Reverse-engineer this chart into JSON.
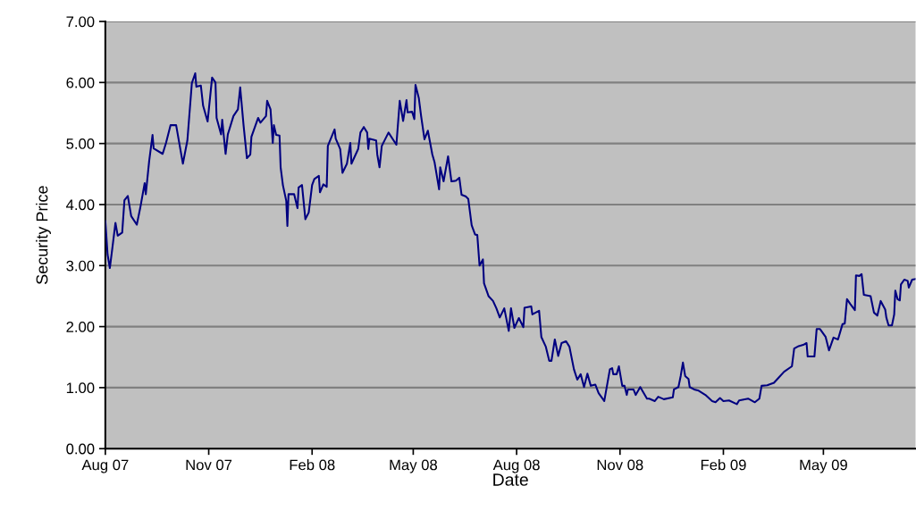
{
  "chart_data": {
    "type": "line",
    "xlabel": "Date",
    "ylabel": "Security Price",
    "x": [
      "2007-08-01",
      "2007-08-03",
      "2007-08-05",
      "2007-08-07",
      "2007-08-10",
      "2007-08-12",
      "2007-08-16",
      "2007-08-18",
      "2007-08-21",
      "2007-08-24",
      "2007-08-29",
      "2007-09-01",
      "2007-09-05",
      "2007-09-06",
      "2007-09-09",
      "2007-09-12",
      "2007-09-13",
      "2007-09-21",
      "2007-09-24",
      "2007-09-28",
      "2007-10-03",
      "2007-10-09",
      "2007-10-13",
      "2007-10-17",
      "2007-10-20",
      "2007-10-21",
      "2007-10-25",
      "2007-10-27",
      "2007-10-31",
      "2007-11-04",
      "2007-11-07",
      "2007-11-08",
      "2007-11-12",
      "2007-11-13",
      "2007-11-16",
      "2007-11-18",
      "2007-11-23",
      "2007-11-27",
      "2007-11-29",
      "2007-12-02",
      "2007-12-05",
      "2007-12-08",
      "2007-12-09",
      "2007-12-15",
      "2007-12-17",
      "2007-12-22",
      "2007-12-23",
      "2007-12-26",
      "2007-12-28",
      "2007-12-29",
      "2007-12-31",
      "2008-01-03",
      "2008-01-04",
      "2008-01-06",
      "2008-01-09",
      "2008-01-10",
      "2008-01-11",
      "2008-01-16",
      "2008-01-19",
      "2008-01-20",
      "2008-01-23",
      "2008-01-26",
      "2008-01-29",
      "2008-02-01",
      "2008-02-03",
      "2008-02-07",
      "2008-02-08",
      "2008-02-11",
      "2008-02-14",
      "2008-02-15",
      "2008-02-21",
      "2008-02-22",
      "2008-02-26",
      "2008-02-28",
      "2008-03-03",
      "2008-03-06",
      "2008-03-07",
      "2008-03-13",
      "2008-03-15",
      "2008-03-18",
      "2008-03-21",
      "2008-03-22",
      "2008-03-23",
      "2008-03-29",
      "2008-03-30",
      "2008-04-01",
      "2008-04-03",
      "2008-04-09",
      "2008-04-16",
      "2008-04-19",
      "2008-04-22",
      "2008-04-25",
      "2008-04-26",
      "2008-04-30",
      "2008-05-02",
      "2008-05-03",
      "2008-05-06",
      "2008-05-08",
      "2008-05-11",
      "2008-05-14",
      "2008-05-18",
      "2008-05-20",
      "2008-05-24",
      "2008-05-25",
      "2008-05-28",
      "2008-06-01",
      "2008-06-04",
      "2008-06-08",
      "2008-06-11",
      "2008-06-13",
      "2008-06-17",
      "2008-06-19",
      "2008-06-22",
      "2008-06-25",
      "2008-06-27",
      "2008-06-29",
      "2008-07-02",
      "2008-07-03",
      "2008-07-07",
      "2008-07-11",
      "2008-07-14",
      "2008-07-17",
      "2008-07-21",
      "2008-07-25",
      "2008-07-27",
      "2008-07-30",
      "2008-08-03",
      "2008-08-07",
      "2008-08-08",
      "2008-08-14",
      "2008-08-15",
      "2008-08-21",
      "2008-08-23",
      "2008-08-27",
      "2008-08-30",
      "2008-09-01",
      "2008-09-04",
      "2008-09-07",
      "2008-09-10",
      "2008-09-14",
      "2008-09-17",
      "2008-09-21",
      "2008-09-24",
      "2008-09-27",
      "2008-09-30",
      "2008-10-03",
      "2008-10-06",
      "2008-10-10",
      "2008-10-13",
      "2008-10-18",
      "2008-10-23",
      "2008-10-25",
      "2008-10-26",
      "2008-10-29",
      "2008-10-31",
      "2008-11-03",
      "2008-11-05",
      "2008-11-07",
      "2008-11-08",
      "2008-11-13",
      "2008-11-15",
      "2008-11-19",
      "2008-11-25",
      "2008-11-27",
      "2008-12-02",
      "2008-12-05",
      "2008-12-10",
      "2008-12-18",
      "2008-12-19",
      "2008-12-23",
      "2008-12-25",
      "2008-12-27",
      "2008-12-29",
      "2009-01-01",
      "2009-01-02",
      "2009-01-06",
      "2009-01-10",
      "2009-01-16",
      "2009-01-22",
      "2009-01-25",
      "2009-01-29",
      "2009-02-01",
      "2009-02-06",
      "2009-02-13",
      "2009-02-15",
      "2009-02-23",
      "2009-03-01",
      "2009-03-05",
      "2009-03-07",
      "2009-03-12",
      "2009-03-18",
      "2009-03-22",
      "2009-03-27",
      "2009-04-03",
      "2009-04-05",
      "2009-04-09",
      "2009-04-13",
      "2009-04-16",
      "2009-04-17",
      "2009-04-23",
      "2009-04-25",
      "2009-04-28",
      "2009-05-03",
      "2009-05-06",
      "2009-05-10",
      "2009-05-14",
      "2009-05-18",
      "2009-05-20",
      "2009-05-22",
      "2009-05-25",
      "2009-05-29",
      "2009-05-30",
      "2009-06-02",
      "2009-06-04",
      "2009-06-06",
      "2009-06-12",
      "2009-06-15",
      "2009-06-18",
      "2009-06-21",
      "2009-06-25",
      "2009-06-26",
      "2009-06-28",
      "2009-07-01",
      "2009-07-03",
      "2009-07-04",
      "2009-07-06",
      "2009-07-08",
      "2009-07-09",
      "2009-07-12",
      "2009-07-15",
      "2009-07-16",
      "2009-07-19",
      "2009-07-22"
    ],
    "series": [
      {
        "color": "#000080",
        "values": [
          3.73,
          3.18,
          2.96,
          3.25,
          3.7,
          3.49,
          3.54,
          4.07,
          4.14,
          3.81,
          3.67,
          3.94,
          4.35,
          4.17,
          4.71,
          5.14,
          4.92,
          4.83,
          5.01,
          5.3,
          5.3,
          4.67,
          5.05,
          5.99,
          6.15,
          5.93,
          5.95,
          5.62,
          5.36,
          6.08,
          6.0,
          5.42,
          5.15,
          5.39,
          4.83,
          5.15,
          5.45,
          5.56,
          5.92,
          5.3,
          4.76,
          4.82,
          5.11,
          5.42,
          5.34,
          5.45,
          5.7,
          5.56,
          5.01,
          5.3,
          5.14,
          5.13,
          4.61,
          4.32,
          4.06,
          3.65,
          4.17,
          4.17,
          3.94,
          4.28,
          4.32,
          3.76,
          3.87,
          4.32,
          4.42,
          4.47,
          4.2,
          4.33,
          4.29,
          4.96,
          5.23,
          5.08,
          4.91,
          4.52,
          4.67,
          5.01,
          4.67,
          4.91,
          5.18,
          5.27,
          5.18,
          4.91,
          5.08,
          5.05,
          4.82,
          4.61,
          4.96,
          5.18,
          4.98,
          5.7,
          5.37,
          5.71,
          5.51,
          5.52,
          5.4,
          5.96,
          5.74,
          5.45,
          5.07,
          5.21,
          4.82,
          4.69,
          4.25,
          4.61,
          4.38,
          4.79,
          4.38,
          4.39,
          4.44,
          4.16,
          4.13,
          4.09,
          3.66,
          3.51,
          3.5,
          3.0,
          3.1,
          2.71,
          2.5,
          2.42,
          2.3,
          2.15,
          2.3,
          1.93,
          2.3,
          1.98,
          2.14,
          1.99,
          2.31,
          2.33,
          2.2,
          2.26,
          1.83,
          1.67,
          1.44,
          1.44,
          1.79,
          1.52,
          1.73,
          1.76,
          1.67,
          1.3,
          1.13,
          1.22,
          1.01,
          1.23,
          1.03,
          1.05,
          0.91,
          0.78,
          1.3,
          1.32,
          1.22,
          1.22,
          1.35,
          1.03,
          1.03,
          0.88,
          0.97,
          0.97,
          0.88,
          1.01,
          0.82,
          0.82,
          0.78,
          0.85,
          0.81,
          0.84,
          0.97,
          1.01,
          1.19,
          1.41,
          1.19,
          1.14,
          1.01,
          0.97,
          0.95,
          0.88,
          0.78,
          0.76,
          0.83,
          0.78,
          0.79,
          0.73,
          0.79,
          0.82,
          0.76,
          0.82,
          1.03,
          1.04,
          1.08,
          1.16,
          1.26,
          1.35,
          1.64,
          1.68,
          1.7,
          1.73,
          1.51,
          1.51,
          1.96,
          1.96,
          1.83,
          1.61,
          1.82,
          1.79,
          2.04,
          2.05,
          2.45,
          2.37,
          2.27,
          2.84,
          2.83,
          2.86,
          2.52,
          2.5,
          2.23,
          2.18,
          2.42,
          2.28,
          2.15,
          2.02,
          2.02,
          2.2,
          2.59,
          2.45,
          2.43,
          2.69,
          2.77,
          2.75,
          2.64,
          2.77,
          2.78
        ]
      }
    ],
    "xlim": [
      "2007-08-01",
      "2009-07-22"
    ],
    "xticks": [
      {
        "value": "2007-08-01",
        "label": "Aug 07"
      },
      {
        "value": "2007-11-01",
        "label": "Nov 07"
      },
      {
        "value": "2008-02-01",
        "label": "Feb 08"
      },
      {
        "value": "2008-05-01",
        "label": "May 08"
      },
      {
        "value": "2008-08-01",
        "label": "Aug 08"
      },
      {
        "value": "2008-11-01",
        "label": "Nov 08"
      },
      {
        "value": "2009-02-01",
        "label": "Feb 09"
      },
      {
        "value": "2009-05-01",
        "label": "May 09"
      }
    ],
    "ylim": [
      0,
      7
    ],
    "yticks": [
      {
        "value": 0,
        "label": "0.00"
      },
      {
        "value": 1,
        "label": "1.00"
      },
      {
        "value": 2,
        "label": "2.00"
      },
      {
        "value": 3,
        "label": "3.00"
      },
      {
        "value": 4,
        "label": "4.00"
      },
      {
        "value": 5,
        "label": "5.00"
      },
      {
        "value": 6,
        "label": "6.00"
      },
      {
        "value": 7,
        "label": "7.00"
      }
    ],
    "grid": "y",
    "legend": false,
    "marker": "none",
    "line_style": "solid"
  }
}
